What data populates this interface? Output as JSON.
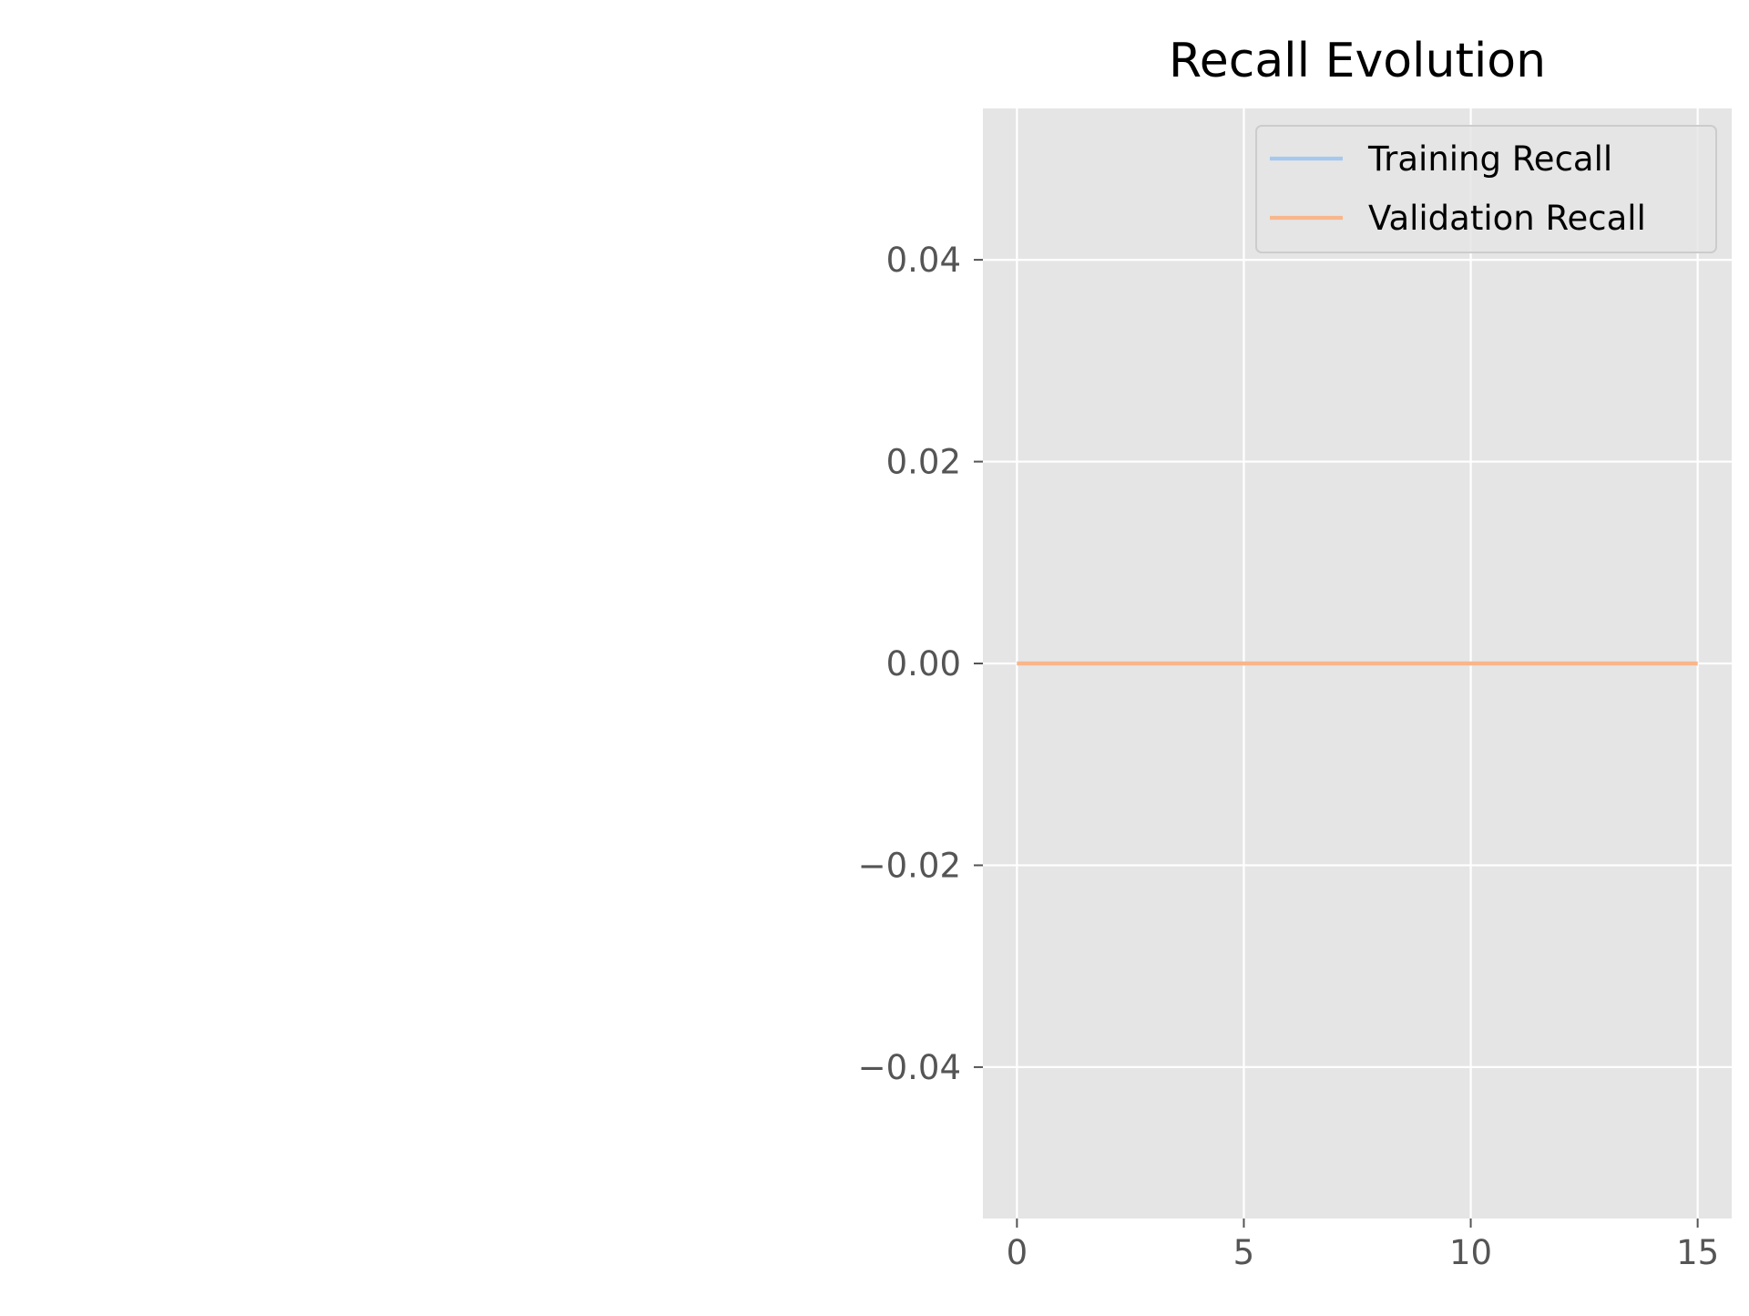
{
  "chart_data": {
    "type": "line",
    "title": "Recall Evolution",
    "xlabel": "",
    "ylabel": "",
    "xlim": [
      -0.75,
      15.75
    ],
    "ylim": [
      -0.055,
      0.055
    ],
    "x_ticks": [
      0,
      5,
      10,
      15
    ],
    "x_tick_labels": [
      "0",
      "5",
      "10",
      "15"
    ],
    "y_ticks": [
      0.04,
      0.02,
      0.0,
      -0.02,
      -0.04
    ],
    "y_tick_labels": [
      "0.04",
      "0.02",
      "0.00",
      "−0.02",
      "−0.04"
    ],
    "grid": true,
    "legend_position": "top-right",
    "series": [
      {
        "name": "Training Recall",
        "color": "#a5c8ef",
        "x": [
          0,
          1,
          2,
          3,
          4,
          5,
          6,
          7,
          8,
          9,
          10,
          11,
          12,
          13,
          14,
          15
        ],
        "y": [
          0,
          0,
          0,
          0,
          0,
          0,
          0,
          0,
          0,
          0,
          0,
          0,
          0,
          0,
          0,
          0
        ]
      },
      {
        "name": "Validation Recall",
        "color": "#f8b68b",
        "x": [
          0,
          1,
          2,
          3,
          4,
          5,
          6,
          7,
          8,
          9,
          10,
          11,
          12,
          13,
          14,
          15
        ],
        "y": [
          0,
          0,
          0,
          0,
          0,
          0,
          0,
          0,
          0,
          0,
          0,
          0,
          0,
          0,
          0,
          0
        ]
      }
    ],
    "colors": {
      "plot_background": "#e5e5e5",
      "grid": "#ffffff",
      "tick_label": "#555555",
      "title": "#000000",
      "legend_background": "#e5e5e5",
      "legend_border": "#cccccc"
    }
  }
}
